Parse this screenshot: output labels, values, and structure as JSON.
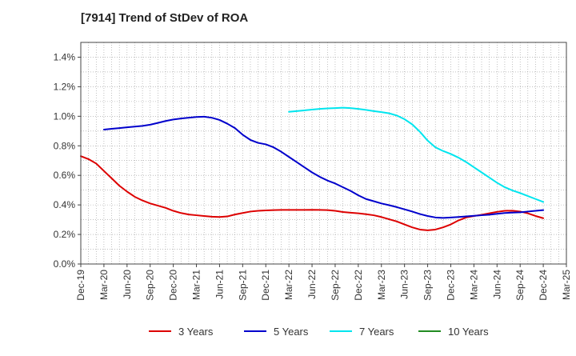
{
  "chart_data": {
    "type": "line",
    "title": "[7914]  Trend of StDev of ROA",
    "xlabel": "",
    "ylabel": "",
    "x_ticks": [
      "Dec-19",
      "Mar-20",
      "Jun-20",
      "Sep-20",
      "Dec-20",
      "Mar-21",
      "Jun-21",
      "Sep-21",
      "Dec-21",
      "Mar-22",
      "Jun-22",
      "Sep-22",
      "Dec-22",
      "Mar-23",
      "Jun-23",
      "Sep-23",
      "Dec-23",
      "Mar-24",
      "Jun-24",
      "Sep-24",
      "Dec-24",
      "Mar-25"
    ],
    "y_ticks": [
      "0.0%",
      "0.2%",
      "0.4%",
      "0.6%",
      "0.8%",
      "1.0%",
      "1.2%",
      "1.4%"
    ],
    "ylim": [
      0,
      1.5
    ],
    "grid": true,
    "legend_position": "bottom",
    "series": [
      {
        "name": "3 Years",
        "color": "#dd0000",
        "points": [
          [
            "Dec-19",
            0.73
          ],
          [
            "Jan-20",
            0.71
          ],
          [
            "Feb-20",
            0.68
          ],
          [
            "Mar-20",
            0.63
          ],
          [
            "Apr-20",
            0.58
          ],
          [
            "May-20",
            0.53
          ],
          [
            "Jun-20",
            0.49
          ],
          [
            "Jul-20",
            0.455
          ],
          [
            "Aug-20",
            0.43
          ],
          [
            "Sep-20",
            0.41
          ],
          [
            "Oct-20",
            0.395
          ],
          [
            "Nov-20",
            0.38
          ],
          [
            "Dec-20",
            0.36
          ],
          [
            "Jan-21",
            0.345
          ],
          [
            "Feb-21",
            0.335
          ],
          [
            "Mar-21",
            0.33
          ],
          [
            "Apr-21",
            0.325
          ],
          [
            "May-21",
            0.32
          ],
          [
            "Jun-21",
            0.318
          ],
          [
            "Jul-21",
            0.322
          ],
          [
            "Aug-21",
            0.335
          ],
          [
            "Sep-21",
            0.345
          ],
          [
            "Oct-21",
            0.355
          ],
          [
            "Nov-21",
            0.36
          ],
          [
            "Dec-21",
            0.363
          ],
          [
            "Jan-22",
            0.365
          ],
          [
            "Feb-22",
            0.366
          ],
          [
            "Mar-22",
            0.366
          ],
          [
            "Apr-22",
            0.366
          ],
          [
            "May-22",
            0.366
          ],
          [
            "Jun-22",
            0.367
          ],
          [
            "Jul-22",
            0.366
          ],
          [
            "Aug-22",
            0.365
          ],
          [
            "Sep-22",
            0.36
          ],
          [
            "Oct-22",
            0.352
          ],
          [
            "Nov-22",
            0.347
          ],
          [
            "Dec-22",
            0.343
          ],
          [
            "Jan-23",
            0.337
          ],
          [
            "Feb-23",
            0.33
          ],
          [
            "Mar-23",
            0.318
          ],
          [
            "Apr-23",
            0.303
          ],
          [
            "May-23",
            0.288
          ],
          [
            "Jun-23",
            0.268
          ],
          [
            "Jul-23",
            0.248
          ],
          [
            "Aug-23",
            0.233
          ],
          [
            "Sep-23",
            0.228
          ],
          [
            "Oct-23",
            0.233
          ],
          [
            "Nov-23",
            0.248
          ],
          [
            "Dec-23",
            0.268
          ],
          [
            "Jan-24",
            0.295
          ],
          [
            "Feb-24",
            0.315
          ],
          [
            "Mar-24",
            0.325
          ],
          [
            "Apr-24",
            0.333
          ],
          [
            "May-24",
            0.343
          ],
          [
            "Jun-24",
            0.353
          ],
          [
            "Jul-24",
            0.36
          ],
          [
            "Aug-24",
            0.361
          ],
          [
            "Sep-24",
            0.355
          ],
          [
            "Oct-24",
            0.343
          ],
          [
            "Nov-24",
            0.325
          ],
          [
            "Dec-24",
            0.31
          ]
        ]
      },
      {
        "name": "5 Years",
        "color": "#0000cc",
        "points": [
          [
            "Mar-20",
            0.91
          ],
          [
            "Apr-20",
            0.915
          ],
          [
            "May-20",
            0.92
          ],
          [
            "Jun-20",
            0.925
          ],
          [
            "Jul-20",
            0.93
          ],
          [
            "Aug-20",
            0.935
          ],
          [
            "Sep-20",
            0.943
          ],
          [
            "Oct-20",
            0.955
          ],
          [
            "Nov-20",
            0.968
          ],
          [
            "Dec-20",
            0.978
          ],
          [
            "Jan-21",
            0.985
          ],
          [
            "Feb-21",
            0.99
          ],
          [
            "Mar-21",
            0.995
          ],
          [
            "Apr-21",
            0.997
          ],
          [
            "May-21",
            0.99
          ],
          [
            "Jun-21",
            0.975
          ],
          [
            "Jul-21",
            0.95
          ],
          [
            "Aug-21",
            0.92
          ],
          [
            "Sep-21",
            0.875
          ],
          [
            "Oct-21",
            0.84
          ],
          [
            "Nov-21",
            0.82
          ],
          [
            "Dec-21",
            0.81
          ],
          [
            "Jan-22",
            0.79
          ],
          [
            "Feb-22",
            0.76
          ],
          [
            "Mar-22",
            0.725
          ],
          [
            "Apr-22",
            0.69
          ],
          [
            "May-22",
            0.655
          ],
          [
            "Jun-22",
            0.62
          ],
          [
            "Jul-22",
            0.59
          ],
          [
            "Aug-22",
            0.565
          ],
          [
            "Sep-22",
            0.545
          ],
          [
            "Oct-22",
            0.52
          ],
          [
            "Nov-22",
            0.495
          ],
          [
            "Dec-22",
            0.465
          ],
          [
            "Jan-23",
            0.44
          ],
          [
            "Feb-23",
            0.425
          ],
          [
            "Mar-23",
            0.41
          ],
          [
            "Apr-23",
            0.398
          ],
          [
            "May-23",
            0.385
          ],
          [
            "Jun-23",
            0.37
          ],
          [
            "Jul-23",
            0.355
          ],
          [
            "Aug-23",
            0.338
          ],
          [
            "Sep-23",
            0.325
          ],
          [
            "Oct-23",
            0.315
          ],
          [
            "Nov-23",
            0.312
          ],
          [
            "Dec-23",
            0.315
          ],
          [
            "Jan-24",
            0.318
          ],
          [
            "Feb-24",
            0.322
          ],
          [
            "Mar-24",
            0.326
          ],
          [
            "Apr-24",
            0.33
          ],
          [
            "May-24",
            0.334
          ],
          [
            "Jun-24",
            0.34
          ],
          [
            "Jul-24",
            0.345
          ],
          [
            "Aug-24",
            0.348
          ],
          [
            "Sep-24",
            0.35
          ],
          [
            "Oct-24",
            0.355
          ],
          [
            "Nov-24",
            0.36
          ],
          [
            "Dec-24",
            0.365
          ]
        ]
      },
      {
        "name": "7 Years",
        "color": "#00e5ee",
        "points": [
          [
            "Mar-22",
            1.03
          ],
          [
            "Apr-22",
            1.035
          ],
          [
            "May-22",
            1.04
          ],
          [
            "Jun-22",
            1.045
          ],
          [
            "Jul-22",
            1.05
          ],
          [
            "Aug-22",
            1.053
          ],
          [
            "Sep-22",
            1.055
          ],
          [
            "Oct-22",
            1.058
          ],
          [
            "Nov-22",
            1.055
          ],
          [
            "Dec-22",
            1.05
          ],
          [
            "Jan-23",
            1.043
          ],
          [
            "Feb-23",
            1.035
          ],
          [
            "Mar-23",
            1.028
          ],
          [
            "Apr-23",
            1.02
          ],
          [
            "May-23",
            1.005
          ],
          [
            "Jun-23",
            0.98
          ],
          [
            "Jul-23",
            0.945
          ],
          [
            "Aug-23",
            0.895
          ],
          [
            "Sep-23",
            0.835
          ],
          [
            "Oct-23",
            0.79
          ],
          [
            "Nov-23",
            0.765
          ],
          [
            "Dec-23",
            0.745
          ],
          [
            "Jan-24",
            0.72
          ],
          [
            "Feb-24",
            0.69
          ],
          [
            "Mar-24",
            0.655
          ],
          [
            "Apr-24",
            0.62
          ],
          [
            "May-24",
            0.585
          ],
          [
            "Jun-24",
            0.55
          ],
          [
            "Jul-24",
            0.52
          ],
          [
            "Aug-24",
            0.498
          ],
          [
            "Sep-24",
            0.48
          ],
          [
            "Oct-24",
            0.46
          ],
          [
            "Nov-24",
            0.44
          ],
          [
            "Dec-24",
            0.42
          ]
        ]
      },
      {
        "name": "10 Years",
        "color": "#228b22",
        "points": []
      }
    ]
  }
}
